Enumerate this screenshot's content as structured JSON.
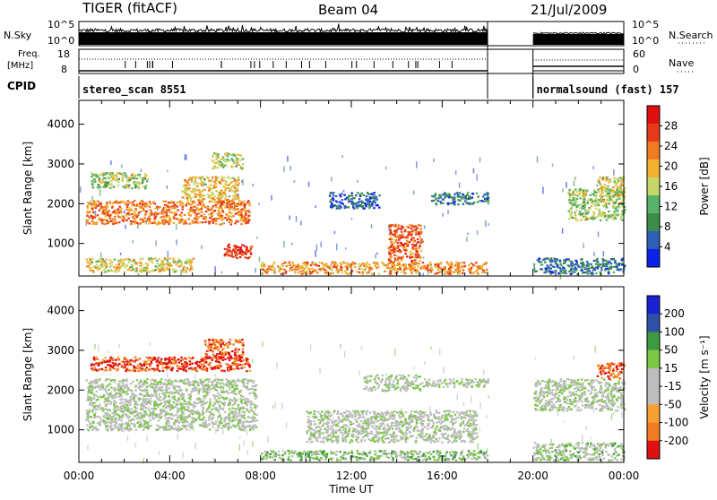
{
  "header": {
    "radar": "TIGER (fitACF)",
    "beam": "Beam 04",
    "date": "21/Jul/2009"
  },
  "side_labels": {
    "nsky": "N.Sky",
    "freq_line1": "Freq.",
    "freq_line2": "[MHz]",
    "cpid": "CPID",
    "nsearch": "N.Search",
    "nave": "Nave"
  },
  "noise_axis": {
    "left_ticks": [
      "10^5",
      "10^0"
    ],
    "right_ticks": [
      "10^5",
      "10^0"
    ]
  },
  "freq_axis": {
    "left_ticks": [
      "18",
      "8"
    ],
    "right_ticks": [
      "60",
      "0"
    ]
  },
  "cpid_segments": [
    {
      "label": "stereo_scan 8551",
      "start_hr": 0,
      "end_hr": 18
    },
    {
      "label": "normalsound (fast) 157",
      "start_hr": 20,
      "end_hr": 24
    }
  ],
  "colors": {
    "power": [
      "#0a22e8",
      "#2f5fb5",
      "#3c8c4c",
      "#58b36a",
      "#c7d86a",
      "#f2b12e",
      "#f07b22",
      "#e63a1c",
      "#e01010"
    ],
    "velocity": [
      "#e01010",
      "#f07b22",
      "#f5a032",
      "#bdbdbd",
      "#bdbdbd",
      "#7ac843",
      "#3d9a43",
      "#2f52a8",
      "#1a22d4"
    ]
  },
  "chart_data": [
    {
      "type": "heatmap",
      "quantity": "Power",
      "ylabel": "Slant Range [km]",
      "yticks": [
        "1000",
        "2000",
        "3000",
        "4000"
      ],
      "ylim": [
        180,
        4600
      ],
      "xlim_hr": [
        0,
        24
      ],
      "colorbar": {
        "title": "Power [dB]",
        "ticks": [
          "28",
          "24",
          "20",
          "16",
          "12",
          "8",
          "4"
        ],
        "range": [
          0,
          32
        ]
      },
      "regions": [
        {
          "t": [
            0.3,
            7.5
          ],
          "r": [
            1500,
            2100
          ],
          "level": 0.75
        },
        {
          "t": [
            4.5,
            7.0
          ],
          "r": [
            2100,
            2700
          ],
          "level": 0.6
        },
        {
          "t": [
            0.5,
            3.0
          ],
          "r": [
            2400,
            2800
          ],
          "level": 0.45
        },
        {
          "t": [
            5.8,
            7.2
          ],
          "r": [
            2900,
            3300
          ],
          "level": 0.5
        },
        {
          "t": [
            6.3,
            7.6
          ],
          "r": [
            650,
            1000
          ],
          "level": 0.9
        },
        {
          "t": [
            0.3,
            5.0
          ],
          "r": [
            300,
            650
          ],
          "level": 0.55
        },
        {
          "t": [
            8.0,
            18.0
          ],
          "r": [
            250,
            550
          ],
          "level": 0.7
        },
        {
          "t": [
            13.6,
            15.1
          ],
          "r": [
            550,
            1500
          ],
          "level": 0.8
        },
        {
          "t": [
            15.5,
            18.0
          ],
          "r": [
            2000,
            2300
          ],
          "level": 0.2
        },
        {
          "t": [
            11.0,
            13.2
          ],
          "r": [
            1900,
            2300
          ],
          "level": 0.15
        },
        {
          "t": [
            21.5,
            24.0
          ],
          "r": [
            1600,
            2400
          ],
          "level": 0.45
        },
        {
          "t": [
            20.0,
            24.0
          ],
          "r": [
            250,
            650
          ],
          "level": 0.2
        },
        {
          "t": [
            22.8,
            24.0
          ],
          "r": [
            2100,
            2700
          ],
          "level": 0.55
        }
      ]
    },
    {
      "type": "heatmap",
      "quantity": "Velocity",
      "ylabel": "Slant Range [km]",
      "yticks": [
        "1000",
        "2000",
        "3000",
        "4000"
      ],
      "ylim": [
        180,
        4600
      ],
      "xlim_hr": [
        0,
        24
      ],
      "xticks": [
        "00:00",
        "04:00",
        "08:00",
        "12:00",
        "16:00",
        "20:00",
        "00:00"
      ],
      "xlabel": "Time UT",
      "colorbar": {
        "title": "Velocity [m s⁻¹]",
        "ticks": [
          "200",
          "100",
          "50",
          "15",
          "-15",
          "-50",
          "-100",
          "-200"
        ],
        "range": [
          -250,
          250
        ]
      },
      "regions": [
        {
          "t": [
            0.5,
            7.5
          ],
          "r": [
            2500,
            2850
          ],
          "level": 0.05
        },
        {
          "t": [
            5.5,
            7.2
          ],
          "r": [
            2800,
            3300
          ],
          "level": 0.1
        },
        {
          "t": [
            0.3,
            7.8
          ],
          "r": [
            1000,
            2300
          ],
          "level": 0.5
        },
        {
          "t": [
            8.0,
            18.0
          ],
          "r": [
            250,
            500
          ],
          "level": 0.62
        },
        {
          "t": [
            10.0,
            17.5
          ],
          "r": [
            700,
            1500
          ],
          "level": 0.5
        },
        {
          "t": [
            12.5,
            15.0
          ],
          "r": [
            2000,
            2400
          ],
          "level": 0.5
        },
        {
          "t": [
            15.0,
            18.0
          ],
          "r": [
            2100,
            2300
          ],
          "level": 0.5
        },
        {
          "t": [
            20.0,
            24.0
          ],
          "r": [
            1500,
            2300
          ],
          "level": 0.5
        },
        {
          "t": [
            20.0,
            24.0
          ],
          "r": [
            250,
            700
          ],
          "level": 0.55
        },
        {
          "t": [
            22.8,
            24.0
          ],
          "r": [
            2300,
            2700
          ],
          "level": 0.1
        }
      ]
    }
  ]
}
